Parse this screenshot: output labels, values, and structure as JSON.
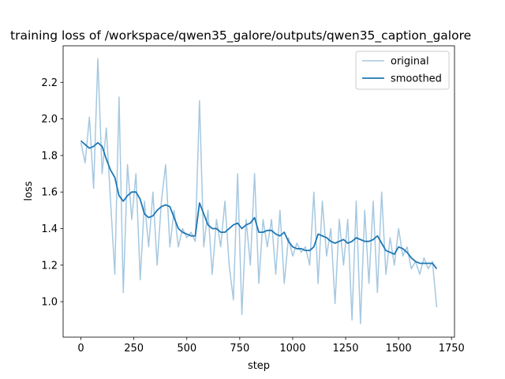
{
  "chart_data": {
    "type": "line",
    "title": "training loss of /workspace/qwen35_galore/outputs/qwen35_caption_galore",
    "xlabel": "step",
    "ylabel": "loss",
    "x": [
      0,
      20,
      40,
      60,
      80,
      100,
      120,
      140,
      160,
      180,
      200,
      220,
      240,
      260,
      280,
      300,
      320,
      340,
      360,
      380,
      400,
      420,
      440,
      460,
      480,
      500,
      520,
      540,
      560,
      580,
      600,
      620,
      640,
      660,
      680,
      700,
      720,
      740,
      760,
      780,
      800,
      820,
      840,
      860,
      880,
      900,
      920,
      940,
      960,
      980,
      1000,
      1020,
      1040,
      1060,
      1080,
      1100,
      1120,
      1140,
      1160,
      1180,
      1200,
      1220,
      1240,
      1260,
      1280,
      1300,
      1320,
      1340,
      1360,
      1380,
      1400,
      1420,
      1440,
      1460,
      1480,
      1500,
      1520,
      1540,
      1560,
      1580,
      1600,
      1620,
      1640,
      1660,
      1680
    ],
    "series": [
      {
        "name": "original",
        "color": "#a5c8e1",
        "width": 1.5,
        "values": [
          1.87,
          1.76,
          2.01,
          1.62,
          2.33,
          1.7,
          1.95,
          1.55,
          1.15,
          2.12,
          1.05,
          1.75,
          1.45,
          1.7,
          1.12,
          1.55,
          1.3,
          1.6,
          1.2,
          1.55,
          1.75,
          1.3,
          1.5,
          1.3,
          1.4,
          1.35,
          1.38,
          1.33,
          2.1,
          1.3,
          1.5,
          1.15,
          1.45,
          1.3,
          1.55,
          1.2,
          1.01,
          1.7,
          0.93,
          1.45,
          1.2,
          1.7,
          1.1,
          1.45,
          1.3,
          1.45,
          1.15,
          1.5,
          1.1,
          1.35,
          1.25,
          1.32,
          1.27,
          1.3,
          1.2,
          1.6,
          1.1,
          1.55,
          1.25,
          1.4,
          0.99,
          1.45,
          1.2,
          1.45,
          0.9,
          1.55,
          0.88,
          1.5,
          1.1,
          1.55,
          1.05,
          1.6,
          1.15,
          1.35,
          1.2,
          1.4,
          1.25,
          1.3,
          1.18,
          1.22,
          1.15,
          1.24,
          1.18,
          1.22,
          0.97
        ]
      },
      {
        "name": "smoothed",
        "color": "#1f77b4",
        "width": 1.8,
        "values": [
          1.88,
          1.86,
          1.84,
          1.85,
          1.87,
          1.85,
          1.78,
          1.72,
          1.68,
          1.58,
          1.55,
          1.58,
          1.6,
          1.6,
          1.56,
          1.48,
          1.46,
          1.47,
          1.5,
          1.52,
          1.53,
          1.52,
          1.46,
          1.4,
          1.38,
          1.37,
          1.36,
          1.36,
          1.54,
          1.48,
          1.42,
          1.4,
          1.4,
          1.38,
          1.38,
          1.4,
          1.42,
          1.43,
          1.4,
          1.42,
          1.43,
          1.46,
          1.38,
          1.38,
          1.39,
          1.39,
          1.37,
          1.36,
          1.38,
          1.33,
          1.3,
          1.29,
          1.29,
          1.28,
          1.28,
          1.3,
          1.37,
          1.36,
          1.35,
          1.33,
          1.32,
          1.33,
          1.34,
          1.32,
          1.33,
          1.35,
          1.34,
          1.33,
          1.33,
          1.34,
          1.36,
          1.32,
          1.28,
          1.27,
          1.26,
          1.3,
          1.29,
          1.27,
          1.24,
          1.22,
          1.21,
          1.21,
          1.21,
          1.21,
          1.18
        ]
      }
    ],
    "xlim": [
      -84,
      1764
    ],
    "xticks": [
      0,
      250,
      500,
      750,
      1000,
      1250,
      1500,
      1750
    ],
    "ylim": [
      0.806,
      2.4
    ],
    "yticks": [
      {
        "value": 1,
        "label": "1.0"
      },
      1.2,
      1.4,
      1.6,
      1.8,
      {
        "value": 2,
        "label": "2.0"
      },
      2.2
    ],
    "legend": "upper right",
    "grid": false
  }
}
